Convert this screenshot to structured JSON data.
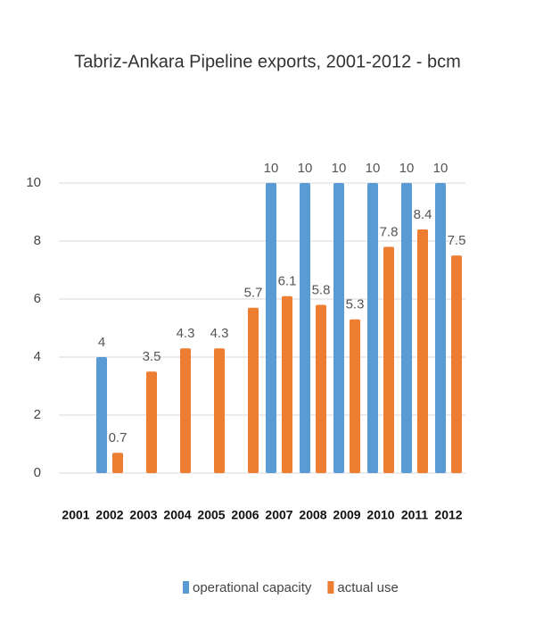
{
  "chart_data": {
    "type": "bar",
    "title": "Tabriz-Ankara Pipeline exports, 2001-2012 - bcm",
    "categories": [
      "2001",
      "2002",
      "2003",
      "2004",
      "2005",
      "2006",
      "2007",
      "2008",
      "2009",
      "2010",
      "2011",
      "2012"
    ],
    "series": [
      {
        "name": "operational capacity",
        "color": "#5b9bd5",
        "values": [
          null,
          4,
          null,
          null,
          null,
          null,
          10,
          10,
          10,
          10,
          10,
          10
        ]
      },
      {
        "name": "actual use",
        "color": "#ed7d31",
        "values": [
          null,
          0.7,
          3.5,
          4.3,
          4.3,
          5.7,
          6.1,
          5.8,
          5.3,
          7.8,
          8.4,
          7.5
        ]
      }
    ],
    "ylim": [
      0,
      10
    ],
    "yticks": [
      0,
      2,
      4,
      6,
      8,
      10
    ],
    "grid": true,
    "legend": "bottom"
  }
}
